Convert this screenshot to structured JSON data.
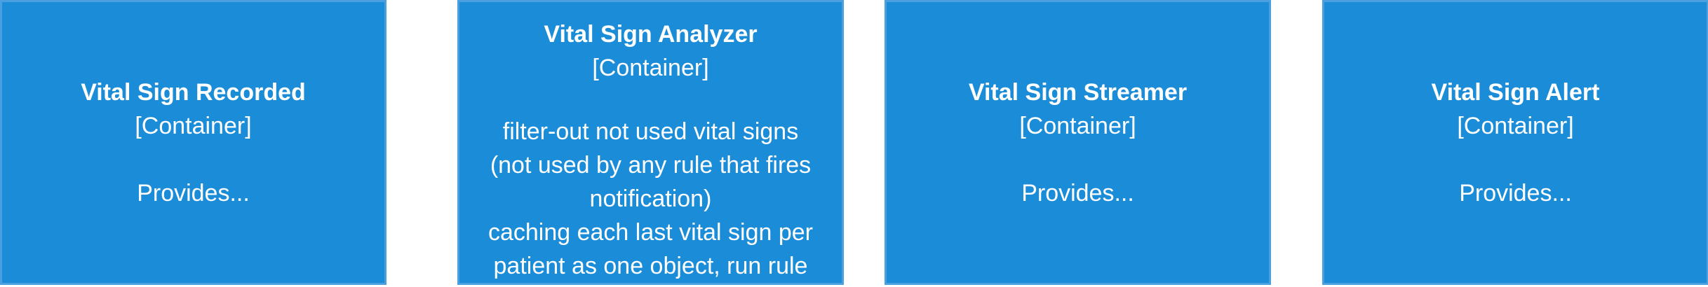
{
  "containers": [
    {
      "name": "Vital Sign Recorded",
      "type": "[Container]",
      "description": "Provides..."
    },
    {
      "name": "Vital Sign Analyzer",
      "type": "[Container]",
      "description": "filter-out not used vital signs\n(not used by any rule that fires\nnotification)\ncaching each last vital sign per\npatient as one object, run rule"
    },
    {
      "name": "Vital Sign Streamer",
      "type": "[Container]",
      "description": "Provides..."
    },
    {
      "name": "Vital Sign Alert",
      "type": "[Container]",
      "description": "Provides..."
    }
  ],
  "colors": {
    "box_fill": "#1b8cd8",
    "box_border": "#4a9fdf",
    "text": "#ffffff"
  }
}
